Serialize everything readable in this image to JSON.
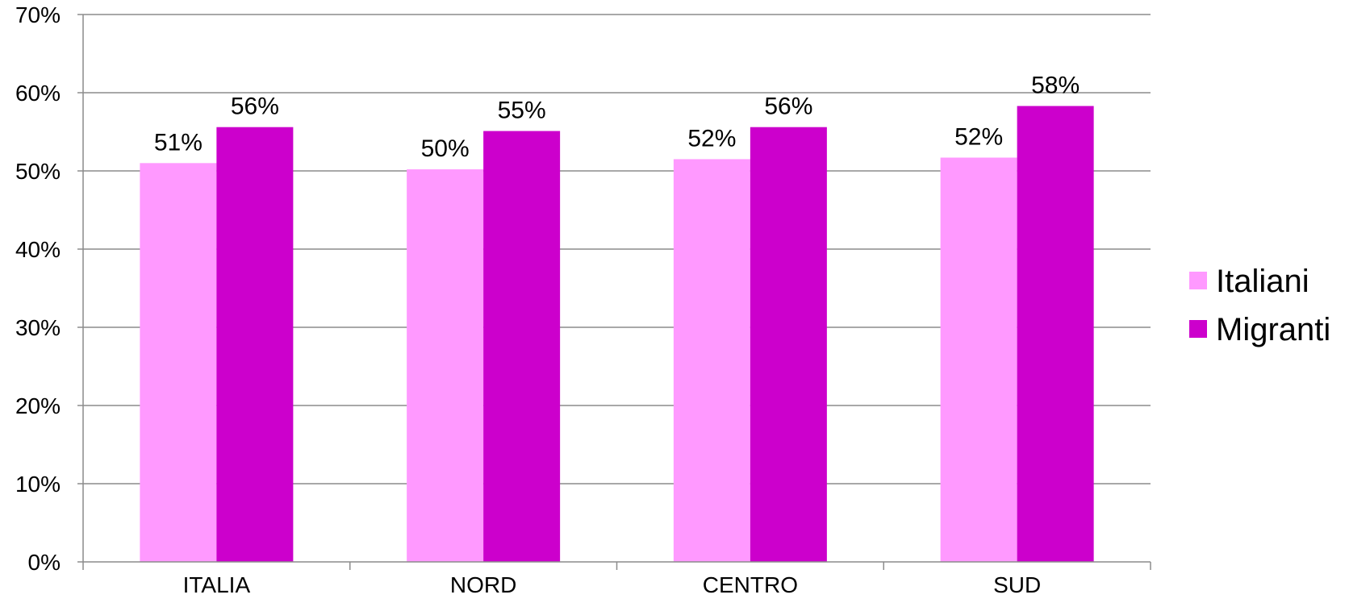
{
  "chart_data": {
    "type": "bar",
    "categories": [
      "ITALIA",
      "NORD",
      "CENTRO",
      "SUD"
    ],
    "series": [
      {
        "name": "Italiani",
        "values": [
          0.51,
          0.502,
          0.515,
          0.517
        ],
        "labels": [
          "51%",
          "50%",
          "52%",
          "52%"
        ],
        "color": "#FF99FF"
      },
      {
        "name": "Migranti",
        "values": [
          0.556,
          0.551,
          0.556,
          0.583
        ],
        "labels": [
          "56%",
          "55%",
          "56%",
          "58%"
        ],
        "color": "#CC00CC"
      }
    ],
    "ylim": [
      0,
      0.7
    ],
    "yticks": [
      {
        "value": 0,
        "label": "0%"
      },
      {
        "value": 0.1,
        "label": "10%"
      },
      {
        "value": 0.2,
        "label": "20%"
      },
      {
        "value": 0.3,
        "label": "30%"
      },
      {
        "value": 0.4,
        "label": "40%"
      },
      {
        "value": 0.5,
        "label": "50%"
      },
      {
        "value": 0.6,
        "label": "60%"
      },
      {
        "value": 0.7,
        "label": "70%"
      }
    ],
    "grid": true,
    "legend": "right",
    "title": "",
    "xlabel": "",
    "ylabel": ""
  }
}
